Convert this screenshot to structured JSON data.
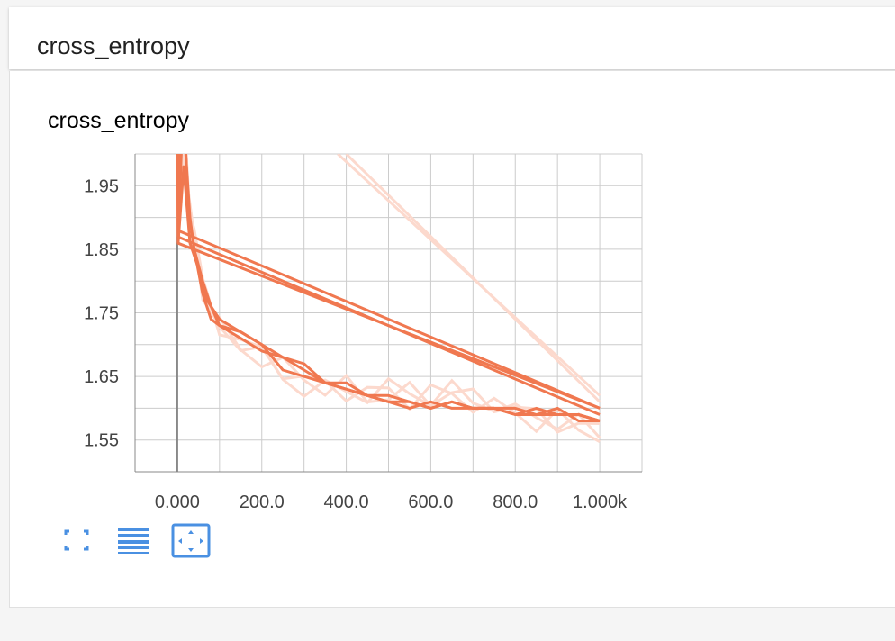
{
  "header": {
    "title": "cross_entropy"
  },
  "chart": {
    "title": "cross_entropy",
    "toolbar": [
      {
        "name": "fullscreen-icon"
      },
      {
        "name": "list-lines-icon"
      },
      {
        "name": "fit-domain-icon"
      }
    ]
  },
  "colors": {
    "series_strong": "#f07850",
    "series_faint": "#fcd9cd",
    "grid": "#cccccc",
    "accent": "#4a90e2"
  },
  "chart_data": {
    "type": "line",
    "title": "cross_entropy",
    "xlabel": "",
    "ylabel": "",
    "xlim": [
      -100,
      1100
    ],
    "ylim": [
      1.5,
      2.0
    ],
    "x_ticks": [
      0,
      200,
      400,
      600,
      800,
      1000
    ],
    "x_tick_labels": [
      "0.000",
      "200.0",
      "400.0",
      "600.0",
      "800.0",
      "1.000k"
    ],
    "y_ticks": [
      1.55,
      1.65,
      1.75,
      1.85,
      1.95
    ],
    "y_tick_labels": [
      "1.55",
      "1.65",
      "1.75",
      "1.85",
      "1.95"
    ],
    "grid": true,
    "series": [
      {
        "x": [
          0,
          2,
          10,
          20,
          30,
          40,
          60,
          80,
          100,
          150,
          200,
          250,
          300,
          350,
          400,
          450,
          500,
          550,
          600,
          650,
          700,
          750,
          800,
          850,
          900,
          950,
          1000
        ],
        "values": [
          2.3,
          1.88,
          2.05,
          2.0,
          1.9,
          1.85,
          1.8,
          1.76,
          1.73,
          1.71,
          1.69,
          1.68,
          1.67,
          1.64,
          1.64,
          1.62,
          1.61,
          1.61,
          1.6,
          1.61,
          1.6,
          1.6,
          1.6,
          1.59,
          1.59,
          1.59,
          1.58
        ]
      },
      {
        "x": [
          0,
          2,
          15,
          25,
          40,
          60,
          80,
          100,
          150,
          200,
          250,
          300,
          350,
          400,
          450,
          500,
          550,
          600,
          650,
          700,
          750,
          800,
          850,
          900,
          950,
          1000
        ],
        "values": [
          2.2,
          1.87,
          2.1,
          1.92,
          1.85,
          1.78,
          1.74,
          1.73,
          1.72,
          1.7,
          1.66,
          1.65,
          1.64,
          1.63,
          1.62,
          1.62,
          1.61,
          1.6,
          1.61,
          1.6,
          1.6,
          1.59,
          1.6,
          1.59,
          1.59,
          1.58
        ]
      },
      {
        "x": [
          0,
          2,
          15,
          30,
          50,
          70,
          100,
          150,
          200,
          250,
          300,
          350,
          400,
          450,
          500,
          550,
          600,
          650,
          700,
          750,
          800,
          850,
          900,
          950,
          1000
        ],
        "values": [
          2.1,
          1.86,
          1.98,
          1.86,
          1.82,
          1.77,
          1.74,
          1.72,
          1.7,
          1.68,
          1.66,
          1.64,
          1.63,
          1.62,
          1.61,
          1.6,
          1.61,
          1.6,
          1.6,
          1.6,
          1.59,
          1.59,
          1.6,
          1.58,
          1.58
        ]
      },
      {
        "x": [
          0,
          1000
        ],
        "values": [
          1.88,
          1.6
        ]
      },
      {
        "x": [
          0,
          1000
        ],
        "values": [
          1.87,
          1.59
        ]
      },
      {
        "x": [
          0,
          1000
        ],
        "values": [
          1.86,
          1.6
        ]
      },
      {
        "x": [
          400,
          1000
        ],
        "values": [
          2.0,
          1.61
        ]
      },
      {
        "x": [
          380,
          1000
        ],
        "values": [
          2.0,
          1.62
        ]
      }
    ]
  }
}
